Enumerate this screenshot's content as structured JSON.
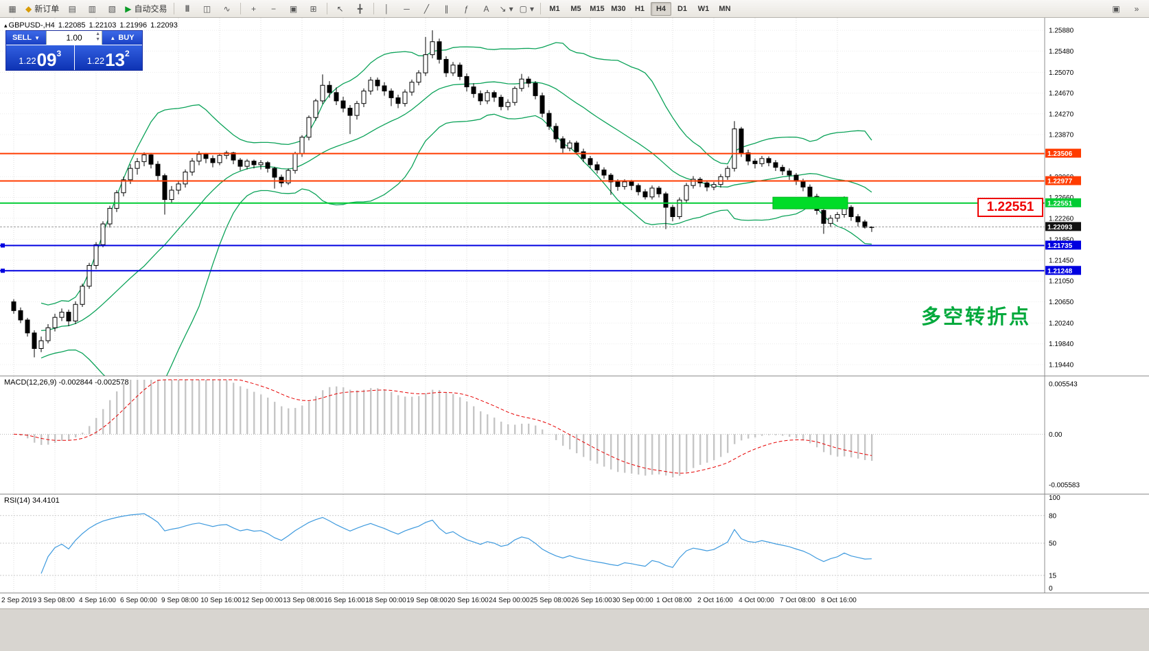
{
  "toolbar": {
    "new_order": "新订单",
    "autotrading": "自动交易",
    "timeframes": [
      "M1",
      "M5",
      "M15",
      "M30",
      "H1",
      "H4",
      "D1",
      "W1",
      "MN"
    ],
    "active_timeframe": "H4"
  },
  "icons": {
    "new_chart": "▦",
    "new_order": "◆",
    "market_watch": "▤",
    "data_window": "▥",
    "navigator": "▧",
    "autotrading_play": "▶",
    "bar_chart": "|||",
    "candlestick_chart": "◫",
    "line_chart": "∿",
    "zoom_in": "+",
    "zoom_out": "−",
    "auto_arrange": "▣",
    "grid": "⊞",
    "cursor": "↖",
    "crosshair": "╋",
    "vertical_line": "│",
    "horizontal_line": "─",
    "trendline": "╱",
    "channel": "∥",
    "fibonacci": "ƒ",
    "text_tool": "A",
    "arrow_tool": "↘",
    "shapes": "▢",
    "dropdown": "▾",
    "chart_window": "▣",
    "toolbar_options": "»"
  },
  "chart_header": {
    "symbol": "GBPUSD-,H4",
    "open": "1.22085",
    "high": "1.22103",
    "low": "1.21996",
    "close": "1.22093"
  },
  "one_click": {
    "sell_label": "SELL",
    "buy_label": "BUY",
    "lot": "1.00",
    "sell_price_main": "1.22",
    "sell_price_big": "09",
    "sell_price_sup": "3",
    "buy_price_main": "1.22",
    "buy_price_big": "13",
    "buy_price_sup": "2"
  },
  "annotations": {
    "price_callout": "1.22551",
    "note_cn": "多空转折点"
  },
  "chart_data": {
    "type": "candlestick",
    "title": "GBPUSD- H4",
    "x_labels": [
      "2 Sep 2019",
      "3 Sep 08:00",
      "4 Sep 16:00",
      "6 Sep 00:00",
      "9 Sep 08:00",
      "10 Sep 16:00",
      "12 Sep 00:00",
      "13 Sep 08:00",
      "16 Sep 16:00",
      "18 Sep 00:00",
      "19 Sep 08:00",
      "20 Sep 16:00",
      "24 Sep 00:00",
      "25 Sep 08:00",
      "26 Sep 16:00",
      "30 Sep 00:00",
      "1 Oct 08:00",
      "2 Oct 16:00",
      "4 Oct 00:00",
      "7 Oct 08:00",
      "8 Oct 16:00"
    ],
    "candles_per_label": 6,
    "y_ticks": [
      "1.25880",
      "1.25480",
      "1.25070",
      "1.24670",
      "1.24270",
      "1.23870",
      "1.23060",
      "1.22660",
      "1.22260",
      "1.21850",
      "1.21450",
      "1.21050",
      "1.20650",
      "1.20240",
      "1.19840",
      "1.19440"
    ],
    "price_min": 1.1936,
    "price_max": 1.2604,
    "candles": [
      [
        1.2065,
        1.207,
        1.2042,
        1.2048
      ],
      [
        1.2048,
        1.2054,
        1.2024,
        1.203
      ],
      [
        1.203,
        1.2034,
        1.1998,
        1.2005
      ],
      [
        1.2005,
        1.201,
        1.1958,
        1.1975
      ],
      [
        1.1975,
        1.1998,
        1.1968,
        1.199
      ],
      [
        1.199,
        1.2022,
        1.1985,
        1.2015
      ],
      [
        1.2015,
        1.2042,
        1.2008,
        1.2035
      ],
      [
        1.2035,
        1.2052,
        1.2028,
        1.2045
      ],
      [
        1.2045,
        1.205,
        1.2018,
        1.2028
      ],
      [
        1.2028,
        1.2066,
        1.2022,
        1.206
      ],
      [
        1.206,
        1.21,
        1.2055,
        1.2095
      ],
      [
        1.2095,
        1.214,
        1.209,
        1.2135
      ],
      [
        1.2135,
        1.218,
        1.2128,
        1.2175
      ],
      [
        1.2175,
        1.222,
        1.217,
        1.2215
      ],
      [
        1.2215,
        1.225,
        1.2208,
        1.2245
      ],
      [
        1.2245,
        1.228,
        1.2238,
        1.2275
      ],
      [
        1.2275,
        1.2306,
        1.2268,
        1.23
      ],
      [
        1.23,
        1.233,
        1.2292,
        1.2322
      ],
      [
        1.2322,
        1.2342,
        1.231,
        1.2335
      ],
      [
        1.2335,
        1.2353,
        1.2326,
        1.2348
      ],
      [
        1.2348,
        1.2352,
        1.2322,
        1.233
      ],
      [
        1.233,
        1.2336,
        1.2298,
        1.2308
      ],
      [
        1.2308,
        1.2312,
        1.2233,
        1.2262
      ],
      [
        1.2262,
        1.2288,
        1.2255,
        1.228
      ],
      [
        1.228,
        1.2298,
        1.2272,
        1.2292
      ],
      [
        1.2292,
        1.232,
        1.2285,
        1.2315
      ],
      [
        1.2315,
        1.2342,
        1.2308,
        1.2336
      ],
      [
        1.2336,
        1.2355,
        1.2328,
        1.2349
      ],
      [
        1.2349,
        1.2352,
        1.2332,
        1.2341
      ],
      [
        1.2341,
        1.2347,
        1.2324,
        1.2333
      ],
      [
        1.2333,
        1.2351,
        1.2328,
        1.2347
      ],
      [
        1.2347,
        1.2356,
        1.234,
        1.2352
      ],
      [
        1.2352,
        1.2354,
        1.233,
        1.2338
      ],
      [
        1.2338,
        1.2342,
        1.2318,
        1.2326
      ],
      [
        1.2326,
        1.234,
        1.232,
        1.2336
      ],
      [
        1.2336,
        1.2339,
        1.2322,
        1.2329
      ],
      [
        1.2329,
        1.2338,
        1.232,
        1.2333
      ],
      [
        1.2333,
        1.2336,
        1.2314,
        1.2322
      ],
      [
        1.2322,
        1.2325,
        1.2283,
        1.2305
      ],
      [
        1.2305,
        1.231,
        1.2286,
        1.2294
      ],
      [
        1.2294,
        1.2322,
        1.229,
        1.2318
      ],
      [
        1.2318,
        1.2354,
        1.2312,
        1.235
      ],
      [
        1.235,
        1.2386,
        1.2344,
        1.2382
      ],
      [
        1.2382,
        1.2424,
        1.2376,
        1.242
      ],
      [
        1.242,
        1.2456,
        1.2414,
        1.2452
      ],
      [
        1.2452,
        1.2503,
        1.2446,
        1.2482
      ],
      [
        1.2482,
        1.249,
        1.2458,
        1.2468
      ],
      [
        1.2468,
        1.2478,
        1.2444,
        1.2452
      ],
      [
        1.2452,
        1.246,
        1.243,
        1.2438
      ],
      [
        1.2438,
        1.2444,
        1.2388,
        1.2424
      ],
      [
        1.2424,
        1.2452,
        1.2416,
        1.2447
      ],
      [
        1.2447,
        1.2476,
        1.244,
        1.2471
      ],
      [
        1.2471,
        1.2498,
        1.2464,
        1.2492
      ],
      [
        1.2492,
        1.2497,
        1.2472,
        1.2481
      ],
      [
        1.2481,
        1.2488,
        1.2462,
        1.2471
      ],
      [
        1.2471,
        1.2476,
        1.2442,
        1.2458
      ],
      [
        1.2458,
        1.2464,
        1.2438,
        1.2447
      ],
      [
        1.2447,
        1.2474,
        1.2441,
        1.2469
      ],
      [
        1.2469,
        1.2493,
        1.2462,
        1.2488
      ],
      [
        1.2488,
        1.2511,
        1.2482,
        1.2506
      ],
      [
        1.2506,
        1.2575,
        1.25,
        1.2541
      ],
      [
        1.2541,
        1.2588,
        1.2534,
        1.2566
      ],
      [
        1.2566,
        1.2572,
        1.2524,
        1.2532
      ],
      [
        1.2532,
        1.2538,
        1.2498,
        1.2506
      ],
      [
        1.2506,
        1.2527,
        1.25,
        1.2521
      ],
      [
        1.2521,
        1.2526,
        1.2492,
        1.2499
      ],
      [
        1.2499,
        1.2505,
        1.247,
        1.2479
      ],
      [
        1.2479,
        1.2486,
        1.2458,
        1.2466
      ],
      [
        1.2466,
        1.2472,
        1.2444,
        1.2452
      ],
      [
        1.2452,
        1.2473,
        1.2446,
        1.2468
      ],
      [
        1.2468,
        1.2472,
        1.245,
        1.2459
      ],
      [
        1.2459,
        1.2464,
        1.2434,
        1.2441
      ],
      [
        1.2441,
        1.2455,
        1.2434,
        1.2449
      ],
      [
        1.2449,
        1.248,
        1.2443,
        1.2476
      ],
      [
        1.2476,
        1.2504,
        1.247,
        1.2494
      ],
      [
        1.2494,
        1.2499,
        1.2478,
        1.2486
      ],
      [
        1.2486,
        1.249,
        1.2455,
        1.2462
      ],
      [
        1.2462,
        1.2468,
        1.242,
        1.2428
      ],
      [
        1.2428,
        1.2434,
        1.2396,
        1.2403
      ],
      [
        1.2403,
        1.2409,
        1.2372,
        1.2379
      ],
      [
        1.2379,
        1.2384,
        1.2352,
        1.2361
      ],
      [
        1.2361,
        1.2376,
        1.2355,
        1.2371
      ],
      [
        1.2371,
        1.2375,
        1.2348,
        1.2354
      ],
      [
        1.2354,
        1.236,
        1.2334,
        1.2341
      ],
      [
        1.2341,
        1.2346,
        1.2322,
        1.2329
      ],
      [
        1.2329,
        1.2335,
        1.2312,
        1.2319
      ],
      [
        1.2319,
        1.2324,
        1.2302,
        1.2309
      ],
      [
        1.2309,
        1.2313,
        1.2271,
        1.2296
      ],
      [
        1.2296,
        1.2301,
        1.2279,
        1.2287
      ],
      [
        1.2287,
        1.2301,
        1.2281,
        1.2296
      ],
      [
        1.2296,
        1.23,
        1.228,
        1.2289
      ],
      [
        1.2289,
        1.2293,
        1.227,
        1.2277
      ],
      [
        1.2277,
        1.2282,
        1.2262,
        1.2267
      ],
      [
        1.2267,
        1.2289,
        1.2262,
        1.2284
      ],
      [
        1.2284,
        1.2288,
        1.2266,
        1.2273
      ],
      [
        1.2273,
        1.2277,
        1.2205,
        1.2247
      ],
      [
        1.2247,
        1.2252,
        1.222,
        1.2229
      ],
      [
        1.2229,
        1.2266,
        1.2224,
        1.2261
      ],
      [
        1.2261,
        1.2294,
        1.2256,
        1.2289
      ],
      [
        1.2289,
        1.2307,
        1.2283,
        1.2301
      ],
      [
        1.2301,
        1.2305,
        1.2286,
        1.2294
      ],
      [
        1.2294,
        1.2299,
        1.2278,
        1.2286
      ],
      [
        1.2286,
        1.2296,
        1.228,
        1.2291
      ],
      [
        1.2291,
        1.2311,
        1.2285,
        1.2306
      ],
      [
        1.2306,
        1.2327,
        1.23,
        1.2322
      ],
      [
        1.2322,
        1.2413,
        1.2316,
        1.2398
      ],
      [
        1.2398,
        1.2402,
        1.2344,
        1.2352
      ],
      [
        1.2352,
        1.2358,
        1.2328,
        1.2336
      ],
      [
        1.2336,
        1.2341,
        1.2322,
        1.2331
      ],
      [
        1.2331,
        1.2346,
        1.2325,
        1.2341
      ],
      [
        1.2341,
        1.2345,
        1.2326,
        1.2333
      ],
      [
        1.2333,
        1.2338,
        1.2317,
        1.2324
      ],
      [
        1.2324,
        1.2329,
        1.2309,
        1.2317
      ],
      [
        1.2317,
        1.2322,
        1.23,
        1.2309
      ],
      [
        1.2309,
        1.2313,
        1.229,
        1.2297
      ],
      [
        1.2297,
        1.2302,
        1.2278,
        1.2286
      ],
      [
        1.2286,
        1.2291,
        1.226,
        1.2268
      ],
      [
        1.2268,
        1.2273,
        1.2233,
        1.2241
      ],
      [
        1.2241,
        1.2246,
        1.2196,
        1.2216
      ],
      [
        1.2216,
        1.2232,
        1.2209,
        1.2226
      ],
      [
        1.2226,
        1.2238,
        1.2219,
        1.2233
      ],
      [
        1.2233,
        1.2268,
        1.2227,
        1.2247
      ],
      [
        1.2247,
        1.2251,
        1.2221,
        1.2229
      ],
      [
        1.2229,
        1.2234,
        1.221,
        1.2219
      ],
      [
        1.2219,
        1.2223,
        1.2206,
        1.22085
      ],
      [
        1.22085,
        1.22103,
        1.21996,
        1.22093
      ]
    ],
    "bollinger": {
      "period": 20,
      "deviation": 2.0,
      "color": "#0aa258"
    },
    "hlines": [
      {
        "price": 1.23506,
        "label": "1.23506",
        "color": "#ff3c00",
        "width": 2
      },
      {
        "price": 1.22977,
        "label": "1.22977",
        "color": "#ff3c00",
        "width": 2
      },
      {
        "price": 1.22551,
        "label": "1.22551",
        "color": "#00cc33",
        "width": 2
      },
      {
        "price": 1.21735,
        "label": "1.21735",
        "color": "#0000e0",
        "width": 2
      },
      {
        "price": 1.21248,
        "label": "1.21248",
        "color": "#0000e0",
        "width": 2
      }
    ],
    "highlight_rect": {
      "from_candle": 111,
      "to_candle": 121,
      "price_top": 1.22665,
      "price_bottom": 1.2244,
      "color": "#00dc28"
    },
    "bid": {
      "price": 1.22093,
      "label": "1.22093"
    },
    "macd": {
      "label_name": "MACD(12,26,9)",
      "label_values": "-0.002844 -0.002578",
      "fast": 12,
      "slow": 26,
      "signal": 9,
      "upper": "0.005543",
      "zero": "0.00",
      "lower": "-0.005583",
      "max": 0.006,
      "min": -0.0061,
      "histogram_color": "#c6c6c6",
      "signal_color": "#e60000"
    },
    "rsi": {
      "label_name": "RSI(14)",
      "label_value": "34.4101",
      "period": 14,
      "levels": [
        15,
        50,
        80
      ],
      "scale_labels": [
        100,
        80,
        50,
        15,
        0
      ],
      "color": "#3e9ade"
    }
  }
}
